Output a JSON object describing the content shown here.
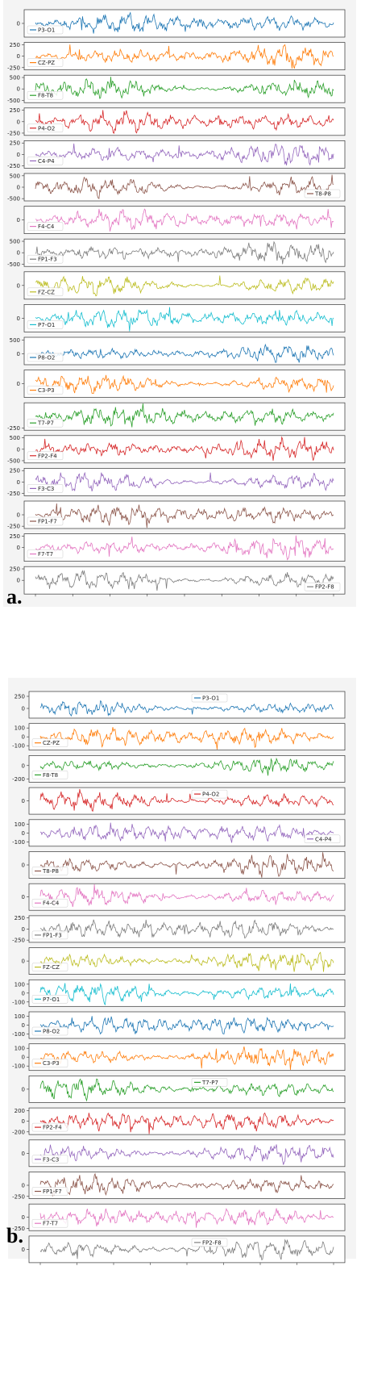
{
  "chart_data": [
    {
      "type": "line",
      "caption": "a.",
      "channels": [
        {
          "name": "P3-O1",
          "color": "#1f77b4",
          "yticks": [
            0
          ],
          "legend": "left",
          "ylim": [
            -200,
            200
          ]
        },
        {
          "name": "CZ-PZ",
          "color": "#ff7f0e",
          "yticks": [
            250,
            0,
            -250
          ],
          "legend": "left",
          "ylim": [
            -300,
            300
          ]
        },
        {
          "name": "F8-T8",
          "color": "#2ca02c",
          "yticks": [
            500,
            0,
            -500
          ],
          "legend": "left",
          "ylim": [
            -600,
            600
          ]
        },
        {
          "name": "P4-O2",
          "color": "#d62728",
          "yticks": [
            250,
            0,
            -250
          ],
          "legend": "left",
          "ylim": [
            -300,
            300
          ]
        },
        {
          "name": "C4-P4",
          "color": "#9467bd",
          "yticks": [
            250,
            0,
            -250
          ],
          "legend": "left",
          "ylim": [
            -300,
            300
          ]
        },
        {
          "name": "T8-P8",
          "color": "#8c564b",
          "yticks": [
            500,
            0,
            -500
          ],
          "legend": "right",
          "ylim": [
            -600,
            600
          ]
        },
        {
          "name": "F4-C4",
          "color": "#e377c2",
          "yticks": [
            0
          ],
          "legend": "left",
          "ylim": [
            -200,
            200
          ]
        },
        {
          "name": "FP1-F3",
          "color": "#7f7f7f",
          "yticks": [
            500,
            0,
            -500
          ],
          "legend": "left",
          "ylim": [
            -600,
            600
          ]
        },
        {
          "name": "FZ-CZ",
          "color": "#bcbd22",
          "yticks": [
            0
          ],
          "legend": "left",
          "ylim": [
            -200,
            200
          ]
        },
        {
          "name": "P7-O1",
          "color": "#17becf",
          "yticks": [
            0
          ],
          "legend": "left",
          "ylim": [
            -200,
            200
          ]
        },
        {
          "name": "P8-O2",
          "color": "#1f77b4",
          "yticks": [
            500,
            0
          ],
          "legend": "left",
          "ylim": [
            -400,
            600
          ]
        },
        {
          "name": "C3-P3",
          "color": "#ff7f0e",
          "yticks": [
            0
          ],
          "legend": "left",
          "ylim": [
            -200,
            200
          ]
        },
        {
          "name": "T7-P7",
          "color": "#2ca02c",
          "yticks": [
            -250
          ],
          "legend": "left",
          "ylim": [
            -300,
            300
          ]
        },
        {
          "name": "FP2-F4",
          "color": "#d62728",
          "yticks": [
            500,
            0,
            -500
          ],
          "legend": "left",
          "ylim": [
            -600,
            600
          ]
        },
        {
          "name": "F3-C3",
          "color": "#9467bd",
          "yticks": [
            250,
            0,
            -250
          ],
          "legend": "left",
          "ylim": [
            -300,
            300
          ]
        },
        {
          "name": "FP1-F7",
          "color": "#8c564b",
          "yticks": [
            0,
            -250
          ],
          "legend": "left",
          "ylim": [
            -300,
            300
          ]
        },
        {
          "name": "F7-T7",
          "color": "#e377c2",
          "yticks": [
            250,
            0
          ],
          "legend": "left",
          "ylim": [
            -300,
            300
          ]
        },
        {
          "name": "FP2-F8",
          "color": "#7f7f7f",
          "yticks": [
            250,
            0
          ],
          "legend": "right",
          "ylim": [
            -300,
            300
          ]
        }
      ]
    },
    {
      "type": "line",
      "caption": "b.",
      "channels": [
        {
          "name": "P3-O1",
          "color": "#1f77b4",
          "yticks": [
            250,
            0
          ],
          "legend": "center",
          "ylim": [
            -200,
            350
          ]
        },
        {
          "name": "CZ-PZ",
          "color": "#ff7f0e",
          "yticks": [
            100,
            0,
            -100
          ],
          "legend": "left",
          "ylim": [
            -150,
            150
          ]
        },
        {
          "name": "F8-T8",
          "color": "#2ca02c",
          "yticks": [
            0,
            -200
          ],
          "legend": "left",
          "ylim": [
            -250,
            150
          ]
        },
        {
          "name": "P4-O2",
          "color": "#d62728",
          "yticks": [
            0
          ],
          "legend": "center",
          "ylim": [
            -200,
            200
          ]
        },
        {
          "name": "C4-P4",
          "color": "#9467bd",
          "yticks": [
            100,
            0,
            -100
          ],
          "legend": "right",
          "ylim": [
            -150,
            150
          ]
        },
        {
          "name": "T8-P8",
          "color": "#8c564b",
          "yticks": [
            0
          ],
          "legend": "left",
          "ylim": [
            -200,
            200
          ]
        },
        {
          "name": "F4-C4",
          "color": "#e377c2",
          "yticks": [
            0
          ],
          "legend": "left",
          "ylim": [
            -200,
            200
          ]
        },
        {
          "name": "FP1-F3",
          "color": "#7f7f7f",
          "yticks": [
            250,
            0,
            -250
          ],
          "legend": "left",
          "ylim": [
            -300,
            300
          ]
        },
        {
          "name": "FZ-CZ",
          "color": "#bcbd22",
          "yticks": [
            0
          ],
          "legend": "left",
          "ylim": [
            -200,
            200
          ]
        },
        {
          "name": "P7-O1",
          "color": "#17becf",
          "yticks": [
            100,
            0,
            -100
          ],
          "legend": "left",
          "ylim": [
            -150,
            150
          ]
        },
        {
          "name": "P8-O2",
          "color": "#1f77b4",
          "yticks": [
            100,
            0,
            -100
          ],
          "legend": "left",
          "ylim": [
            -150,
            150
          ]
        },
        {
          "name": "C3-P3",
          "color": "#ff7f0e",
          "yticks": [
            100,
            0,
            -100
          ],
          "legend": "left",
          "ylim": [
            -150,
            150
          ]
        },
        {
          "name": "T7-P7",
          "color": "#2ca02c",
          "yticks": [
            0
          ],
          "legend": "center",
          "ylim": [
            -200,
            200
          ]
        },
        {
          "name": "FP2-F4",
          "color": "#d62728",
          "yticks": [
            200,
            0,
            -200
          ],
          "legend": "left",
          "ylim": [
            -250,
            250
          ]
        },
        {
          "name": "F3-C3",
          "color": "#9467bd",
          "yticks": [
            0
          ],
          "legend": "left",
          "ylim": [
            -200,
            200
          ]
        },
        {
          "name": "FP1-F7",
          "color": "#8c564b",
          "yticks": [
            0,
            -250
          ],
          "legend": "left",
          "ylim": [
            -300,
            300
          ]
        },
        {
          "name": "F7-T7",
          "color": "#e377c2",
          "yticks": [
            0,
            -250
          ],
          "legend": "left",
          "ylim": [
            -300,
            300
          ]
        },
        {
          "name": "FP2-F8",
          "color": "#7f7f7f",
          "yticks": [
            0
          ],
          "legend": "center",
          "ylim": [
            -200,
            200
          ]
        }
      ]
    }
  ]
}
